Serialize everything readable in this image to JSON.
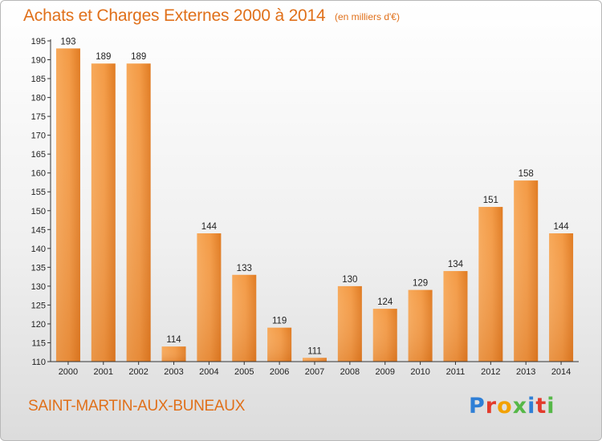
{
  "header": {
    "title": "Achats et Charges Externes 2000 à 2014",
    "subtitle": "(en milliers d'€)"
  },
  "footer": {
    "commune": "SAINT-MARTIN-AUX-BUNEAUX",
    "logo_letters": [
      "P",
      "r",
      "o",
      "x",
      "i",
      "t",
      "i"
    ]
  },
  "colors": {
    "title": "#e0701a",
    "bar_light": "#f7a95a",
    "bar_dark": "#e07b22"
  },
  "chart_data": {
    "type": "bar",
    "title": "Achats et Charges Externes 2000 à 2014",
    "subtitle": "(en milliers d'€)",
    "xlabel": "",
    "ylabel": "",
    "categories": [
      "2000",
      "2001",
      "2002",
      "2003",
      "2004",
      "2005",
      "2006",
      "2007",
      "2008",
      "2009",
      "2010",
      "2011",
      "2012",
      "2013",
      "2014"
    ],
    "values": [
      193,
      189,
      189,
      114,
      144,
      133,
      119,
      111,
      130,
      124,
      129,
      134,
      151,
      158,
      144
    ],
    "ylim": [
      110,
      195
    ],
    "yticks": [
      110,
      115,
      120,
      125,
      130,
      135,
      140,
      145,
      150,
      155,
      160,
      165,
      170,
      175,
      180,
      185,
      190,
      195
    ],
    "grid": false,
    "legend": "none"
  }
}
